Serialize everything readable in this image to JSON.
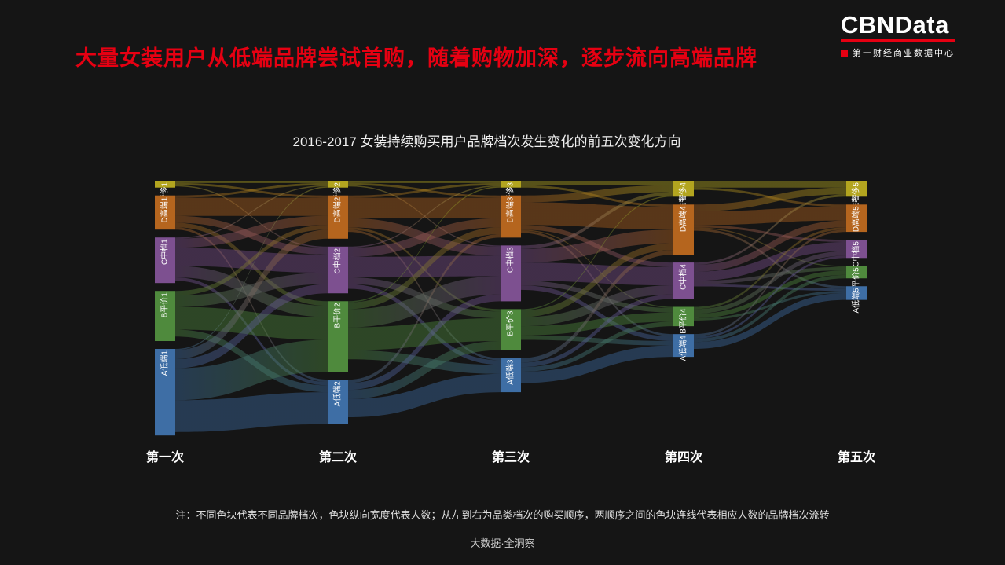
{
  "header": {
    "title": "大量女装用户从低端品牌尝试首购，随着购物加深，逐步流向高端品牌",
    "accent_color": "#e60012"
  },
  "logo": {
    "name": "CBNData",
    "subtitle": "第一财经商业数据中心"
  },
  "chart_data": {
    "type": "sankey",
    "title": "2016-2017 女装持续购买用户品牌档次发生变化的前五次变化方向",
    "steps": [
      "第一次",
      "第二次",
      "第三次",
      "第四次",
      "第五次"
    ],
    "categories": [
      {
        "id": "E",
        "label": "E奢侈",
        "color": "#b3a51f"
      },
      {
        "id": "D",
        "label": "D高端",
        "color": "#b5651e"
      },
      {
        "id": "C",
        "label": "C中档",
        "color": "#7d5090"
      },
      {
        "id": "B",
        "label": "B平价",
        "color": "#4f8a3d"
      },
      {
        "id": "A",
        "label": "A低端",
        "color": "#3e6ea5"
      }
    ],
    "category_order_note": "node_values rows are steps 1-5; columns follow categories order top-to-bottom (E,D,C,B,A); values are relative user volumes",
    "node_values": [
      [
        3,
        15,
        20,
        22,
        38
      ],
      [
        3,
        19,
        20.5,
        31,
        19.5
      ],
      [
        3,
        18.5,
        24.5,
        18,
        15
      ],
      [
        7,
        22,
        16,
        8.5,
        10
      ],
      [
        7,
        12,
        8,
        5.5,
        6
      ]
    ],
    "links_schema": [
      "step_index",
      "from_category_index",
      "to_category_index",
      "value"
    ],
    "links": [
      [
        0,
        0,
        0,
        1
      ],
      [
        0,
        0,
        1,
        1
      ],
      [
        0,
        0,
        2,
        0.5
      ],
      [
        0,
        1,
        0,
        1
      ],
      [
        0,
        1,
        1,
        8
      ],
      [
        0,
        1,
        2,
        3
      ],
      [
        0,
        1,
        3,
        2
      ],
      [
        0,
        1,
        4,
        1
      ],
      [
        0,
        2,
        0,
        0.5
      ],
      [
        0,
        2,
        1,
        4
      ],
      [
        0,
        2,
        2,
        8
      ],
      [
        0,
        2,
        3,
        5
      ],
      [
        0,
        2,
        4,
        1.5
      ],
      [
        0,
        3,
        1,
        2
      ],
      [
        0,
        3,
        2,
        5
      ],
      [
        0,
        3,
        3,
        10
      ],
      [
        0,
        3,
        4,
        3
      ],
      [
        0,
        4,
        0,
        0.5
      ],
      [
        0,
        4,
        1,
        4
      ],
      [
        0,
        4,
        2,
        4
      ],
      [
        0,
        4,
        3,
        14
      ],
      [
        0,
        4,
        4,
        14
      ],
      [
        1,
        0,
        0,
        1
      ],
      [
        1,
        0,
        1,
        1
      ],
      [
        1,
        0,
        2,
        0.5
      ],
      [
        1,
        1,
        0,
        1
      ],
      [
        1,
        1,
        1,
        9
      ],
      [
        1,
        1,
        2,
        4
      ],
      [
        1,
        1,
        3,
        1
      ],
      [
        1,
        1,
        4,
        1
      ],
      [
        1,
        2,
        0,
        0.5
      ],
      [
        1,
        2,
        1,
        4
      ],
      [
        1,
        2,
        2,
        9
      ],
      [
        1,
        2,
        3,
        3
      ],
      [
        1,
        2,
        4,
        2
      ],
      [
        1,
        3,
        0,
        0.5
      ],
      [
        1,
        3,
        1,
        3
      ],
      [
        1,
        3,
        2,
        8
      ],
      [
        1,
        3,
        3,
        10
      ],
      [
        1,
        3,
        4,
        4
      ],
      [
        1,
        4,
        1,
        1.5
      ],
      [
        1,
        4,
        2,
        3
      ],
      [
        1,
        4,
        3,
        4
      ],
      [
        1,
        4,
        4,
        8
      ],
      [
        2,
        0,
        0,
        2
      ],
      [
        2,
        0,
        1,
        1
      ],
      [
        2,
        1,
        0,
        3
      ],
      [
        2,
        1,
        1,
        10
      ],
      [
        2,
        1,
        2,
        2
      ],
      [
        2,
        1,
        3,
        0.5
      ],
      [
        2,
        1,
        4,
        1
      ],
      [
        2,
        2,
        0,
        1.5
      ],
      [
        2,
        2,
        1,
        6
      ],
      [
        2,
        2,
        2,
        8
      ],
      [
        2,
        2,
        3,
        2
      ],
      [
        2,
        2,
        4,
        2
      ],
      [
        2,
        3,
        0,
        0.5
      ],
      [
        2,
        3,
        1,
        3
      ],
      [
        2,
        3,
        2,
        4
      ],
      [
        2,
        3,
        3,
        4
      ],
      [
        2,
        3,
        4,
        2
      ],
      [
        2,
        4,
        1,
        2
      ],
      [
        2,
        4,
        2,
        2
      ],
      [
        2,
        4,
        3,
        2
      ],
      [
        2,
        4,
        4,
        5
      ],
      [
        3,
        0,
        0,
        3
      ],
      [
        3,
        0,
        1,
        1
      ],
      [
        3,
        1,
        0,
        3
      ],
      [
        3,
        1,
        1,
        6
      ],
      [
        3,
        1,
        2,
        1
      ],
      [
        3,
        1,
        3,
        0.5
      ],
      [
        3,
        1,
        4,
        1
      ],
      [
        3,
        2,
        0,
        1
      ],
      [
        3,
        2,
        1,
        3
      ],
      [
        3,
        2,
        2,
        4
      ],
      [
        3,
        2,
        3,
        1.5
      ],
      [
        3,
        2,
        4,
        1
      ],
      [
        3,
        3,
        1,
        1
      ],
      [
        3,
        3,
        2,
        2
      ],
      [
        3,
        3,
        3,
        2
      ],
      [
        3,
        3,
        4,
        1
      ],
      [
        3,
        4,
        1,
        1
      ],
      [
        3,
        4,
        2,
        1
      ],
      [
        3,
        4,
        3,
        1.5
      ],
      [
        3,
        4,
        4,
        3
      ]
    ],
    "background": "#151515",
    "text_color": "#ffffff"
  },
  "note": "注：不同色块代表不同品牌档次，色块纵向宽度代表人数；从左到右为品类档次的购买顺序，两顺序之间的色块连线代表相应人数的品牌档次流转",
  "footer": "大数据·全洞察"
}
